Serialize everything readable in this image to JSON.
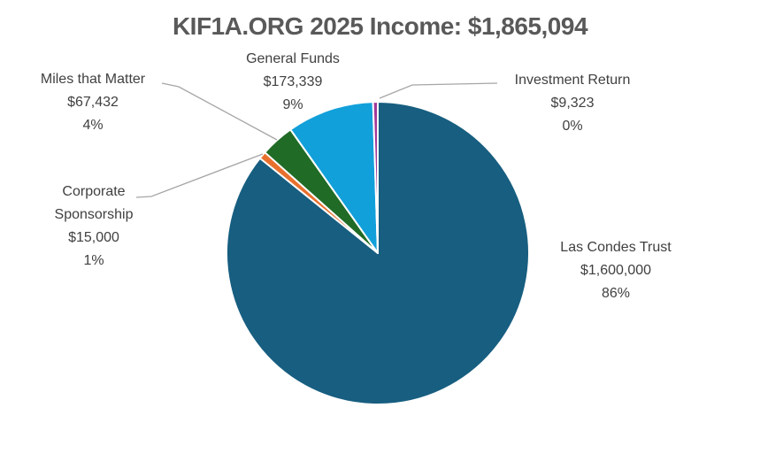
{
  "background_color": "#ffffff",
  "title_color": "#595959",
  "label_color": "#404040",
  "leader_line_color": "#a6a6a6",
  "chart_data": {
    "type": "pie",
    "title": "KIF1A.ORG 2025 Income: $1,865,094",
    "total_value": 1865094,
    "total_display": "$1,865,094",
    "start_angle_deg": 0,
    "direction": "clockwise",
    "legend_position": "none",
    "label_style": "callout-with-leader-lines",
    "slices": [
      {
        "label": "Las Condes Trust",
        "value": 1600000,
        "amount": "$1,600,000",
        "percent": "86%",
        "color": "#175e80"
      },
      {
        "label": "Corporate Sponsorship",
        "value": 15000,
        "amount": "$15,000",
        "percent": "1%",
        "color": "#e8702d"
      },
      {
        "label": "Miles that Matter",
        "value": 67432,
        "amount": "$67,432",
        "percent": "4%",
        "color": "#206b26"
      },
      {
        "label": "General Funds",
        "value": 173339,
        "amount": "$173,339",
        "percent": "9%",
        "color": "#12a0da"
      },
      {
        "label": "Investment Return",
        "value": 9323,
        "amount": "$9,323",
        "percent": "0%",
        "color": "#a0399b"
      }
    ]
  }
}
